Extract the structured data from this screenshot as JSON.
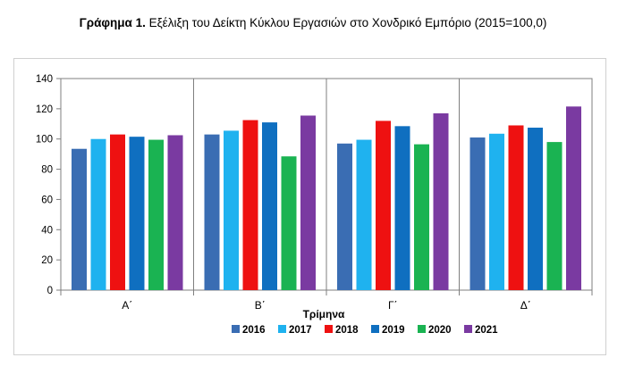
{
  "title": {
    "prefix": "Γράφημα 1.",
    "text": " Εξέλιξη του Δείκτη Κύκλου Εργασιών στο Χονδρικό Εμπόριο (2015=100,0)"
  },
  "chart_data": {
    "type": "bar",
    "categories": [
      "Α΄",
      "Β΄",
      "Γ΄",
      "Δ΄"
    ],
    "xlabel": "Τρίμηνα",
    "ylabel": "",
    "ylim": [
      0,
      140
    ],
    "yticks": [
      0,
      20,
      40,
      60,
      80,
      100,
      120,
      140
    ],
    "grid": "vertical category separators",
    "legend_position": "bottom",
    "series": [
      {
        "name": "2016",
        "color": "#3a6db3",
        "values": [
          93.5,
          103,
          97,
          101
        ]
      },
      {
        "name": "2017",
        "color": "#1fb2ef",
        "values": [
          100,
          105.5,
          99.5,
          103.5
        ]
      },
      {
        "name": "2018",
        "color": "#ee1111",
        "values": [
          103,
          112.5,
          112,
          109
        ]
      },
      {
        "name": "2019",
        "color": "#0f6fc0",
        "values": [
          101.5,
          111,
          108.5,
          107.5
        ]
      },
      {
        "name": "2020",
        "color": "#1ab352",
        "values": [
          99.5,
          88.5,
          96.5,
          98
        ]
      },
      {
        "name": "2021",
        "color": "#7a3aa1",
        "values": [
          102.5,
          115.5,
          117,
          121.5
        ]
      }
    ]
  }
}
